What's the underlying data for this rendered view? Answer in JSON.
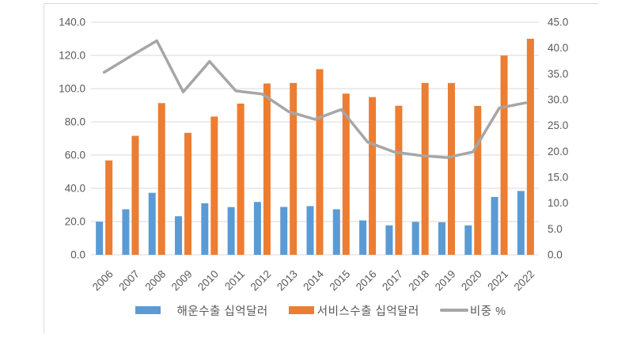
{
  "colors": {
    "shipping_bar": "#5B9BD5",
    "service_bar": "#ED7D31",
    "ratio_line": "#A6A6A6",
    "gridline": "#D9D9D9",
    "axis_text": "#595959",
    "cell_border": "#D9D9D9"
  },
  "chart_data": {
    "type": "bar+line-combo",
    "title": "",
    "xlabel": "",
    "ylabel_left": "",
    "ylabel_right": "",
    "grid": true,
    "legend_position": "bottom",
    "categories": [
      "2006",
      "2007",
      "2008",
      "2009",
      "2010",
      "2011",
      "2012",
      "2013",
      "2014",
      "2015",
      "2016",
      "2017",
      "2018",
      "2019",
      "2020",
      "2021",
      "2022"
    ],
    "series": [
      {
        "name": "해운수출 십억달러",
        "type": "bar",
        "axis": "left",
        "color": "#5B9BD5",
        "values": [
          19.9,
          27.4,
          37.3,
          23.2,
          31.0,
          28.7,
          31.8,
          28.8,
          29.3,
          27.4,
          20.7,
          17.7,
          19.8,
          19.6,
          17.7,
          34.8,
          38.4
        ]
      },
      {
        "name": "서비스수출 십억달러",
        "type": "bar",
        "axis": "left",
        "color": "#ED7D31",
        "values": [
          56.8,
          71.6,
          91.3,
          73.4,
          83.2,
          91.0,
          103.1,
          103.4,
          111.7,
          97.0,
          94.9,
          89.7,
          103.4,
          103.4,
          89.6,
          119.9,
          130.0
        ]
      },
      {
        "name": "비중 %",
        "type": "line",
        "axis": "right",
        "color": "#A6A6A6",
        "values": [
          35.3,
          38.4,
          41.4,
          31.5,
          37.4,
          31.7,
          31.1,
          27.7,
          26.2,
          28.1,
          21.8,
          19.9,
          19.2,
          18.8,
          19.9,
          28.4,
          29.4
        ]
      }
    ],
    "left_axis": {
      "min": 0,
      "max": 140,
      "step": 20,
      "ticks": [
        "140.0",
        "120.0",
        "100.0",
        "80.0",
        "60.0",
        "40.0",
        "20.0",
        "0.0"
      ]
    },
    "right_axis": {
      "min": 0,
      "max": 45,
      "step": 5,
      "ticks": [
        "45.0",
        "40.0",
        "35.0",
        "30.0",
        "25.0",
        "20.0",
        "15.0",
        "10.0",
        "5.0",
        "0.0"
      ]
    }
  }
}
